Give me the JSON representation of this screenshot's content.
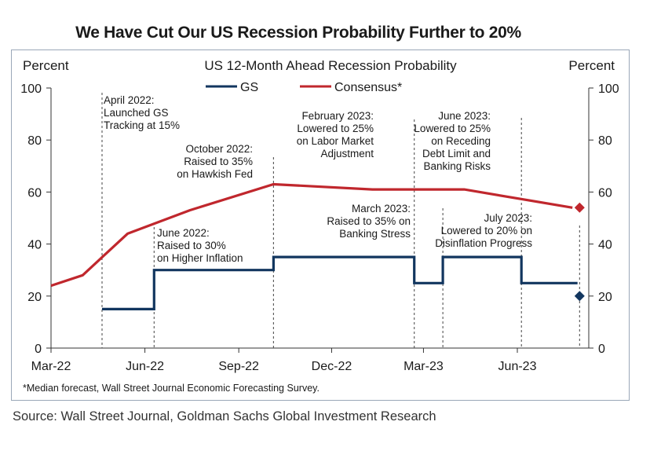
{
  "headline": "We Have Cut Our US Recession Probability Further to 20%",
  "source": "Source: Wall Street Journal, Goldman Sachs Global Investment Research",
  "colors": {
    "gs": "#12365f",
    "consensus": "#c0272d",
    "frame": "#9aa7b8"
  },
  "chart_data": {
    "type": "line",
    "title": "US 12-Month  Ahead  Recession  Probability",
    "ylabel_left": "Percent",
    "ylabel_right": "Percent",
    "ylim": [
      0,
      100
    ],
    "yticks": [
      0,
      20,
      40,
      60,
      80,
      100
    ],
    "x_ticks": [
      {
        "date": "2022-03-01",
        "label": "Mar-22"
      },
      {
        "date": "2022-06-01",
        "label": "Jun-22"
      },
      {
        "date": "2022-09-01",
        "label": "Sep-22"
      },
      {
        "date": "2022-12-01",
        "label": "Dec-22"
      },
      {
        "date": "2023-03-01",
        "label": "Mar-23"
      },
      {
        "date": "2023-06-01",
        "label": "Jun-23"
      }
    ],
    "xlim": [
      "2022-03-01",
      "2023-08-10"
    ],
    "legend": "top-center",
    "series": [
      {
        "name": "GS",
        "step": true,
        "points": [
          {
            "date": "2022-04-20",
            "value": 15
          },
          {
            "date": "2022-06-10",
            "value": 30
          },
          {
            "date": "2022-10-05",
            "value": 35
          },
          {
            "date": "2023-02-20",
            "value": 25
          },
          {
            "date": "2023-03-20",
            "value": 35
          },
          {
            "date": "2023-06-05",
            "value": 25
          },
          {
            "date": "2023-07-30",
            "value": 25
          }
        ],
        "end_marker": {
          "date": "2023-08-01",
          "value": 20
        }
      },
      {
        "name": "Consensus*",
        "step": false,
        "points": [
          {
            "date": "2022-03-01",
            "value": 24
          },
          {
            "date": "2022-04-01",
            "value": 28
          },
          {
            "date": "2022-05-15",
            "value": 44
          },
          {
            "date": "2022-07-15",
            "value": 53
          },
          {
            "date": "2022-10-05",
            "value": 63
          },
          {
            "date": "2023-01-10",
            "value": 61
          },
          {
            "date": "2023-04-10",
            "value": 61
          },
          {
            "date": "2023-07-25",
            "value": 54
          }
        ],
        "end_marker": {
          "date": "2023-08-01",
          "value": 54
        }
      }
    ],
    "events": [
      {
        "date": "2022-04-20",
        "lines": [
          "April 2022:",
          "Launched GS",
          "Tracking at 15%"
        ]
      },
      {
        "date": "2022-06-10",
        "lines": [
          "June 2022:",
          "Raised to 30%",
          "on Higher Inflation"
        ]
      },
      {
        "date": "2022-10-05",
        "lines": [
          "October 2022:",
          "Raised to 35%",
          "on Hawkish Fed"
        ]
      },
      {
        "date": "2023-02-20",
        "lines": [
          "February 2023:",
          "Lowered to 25%",
          "on Labor Market",
          "Adjustment"
        ]
      },
      {
        "date": "2023-03-20",
        "lines": [
          "March 2023:",
          "Raised to 35% on",
          "Banking Stress"
        ]
      },
      {
        "date": "2023-06-05",
        "lines": [
          "June 2023:",
          "Lowered to 25%",
          "on Receding",
          "Debt Limit  and",
          "Banking Risks"
        ]
      },
      {
        "date": "2023-08-01",
        "lines": [
          "July 2023:",
          "Lowered to 20% on",
          "Disinflation Progress"
        ]
      }
    ],
    "footnote": "*Median  forecast, Wall Street Journal Economic  Forecasting Survey."
  }
}
